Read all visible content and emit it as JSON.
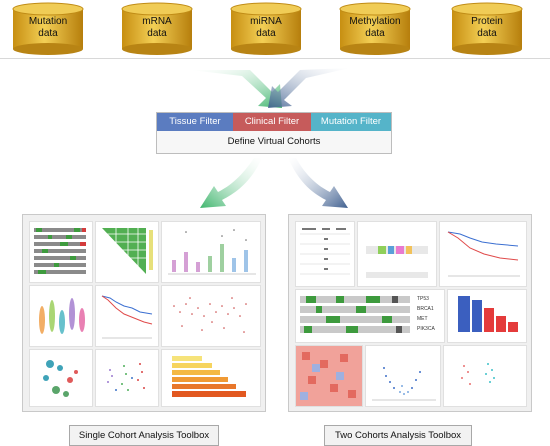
{
  "databases": [
    {
      "label_line1": "Mutation",
      "label_line2": "data"
    },
    {
      "label_line1": "mRNA",
      "label_line2": "data"
    },
    {
      "label_line1": "miRNA",
      "label_line2": "data"
    },
    {
      "label_line1": "Methylation",
      "label_line2": "data"
    },
    {
      "label_line1": "Protein",
      "label_line2": "data"
    }
  ],
  "filters": {
    "tissue": "Tissue Filter",
    "clinical": "Clinical Filter",
    "mutation": "Mutation Filter",
    "define": "Define Virtual Cohorts"
  },
  "toolboxes": {
    "single": "Single Cohort Analysis Toolbox",
    "two": "Two Cohorts Analysis Toolbox"
  },
  "legend_labels": [
    "TP53",
    "BRCA1",
    "MET",
    "PIK3CA"
  ],
  "colors": {
    "cylinder_gold": "#d9a92a",
    "tissue_blue": "#5b7cc0",
    "clinical_red": "#c65b5b",
    "mutation_teal": "#55b4c9",
    "arrow_green": "#3fb56d",
    "arrow_navy": "#3f5f8f"
  }
}
